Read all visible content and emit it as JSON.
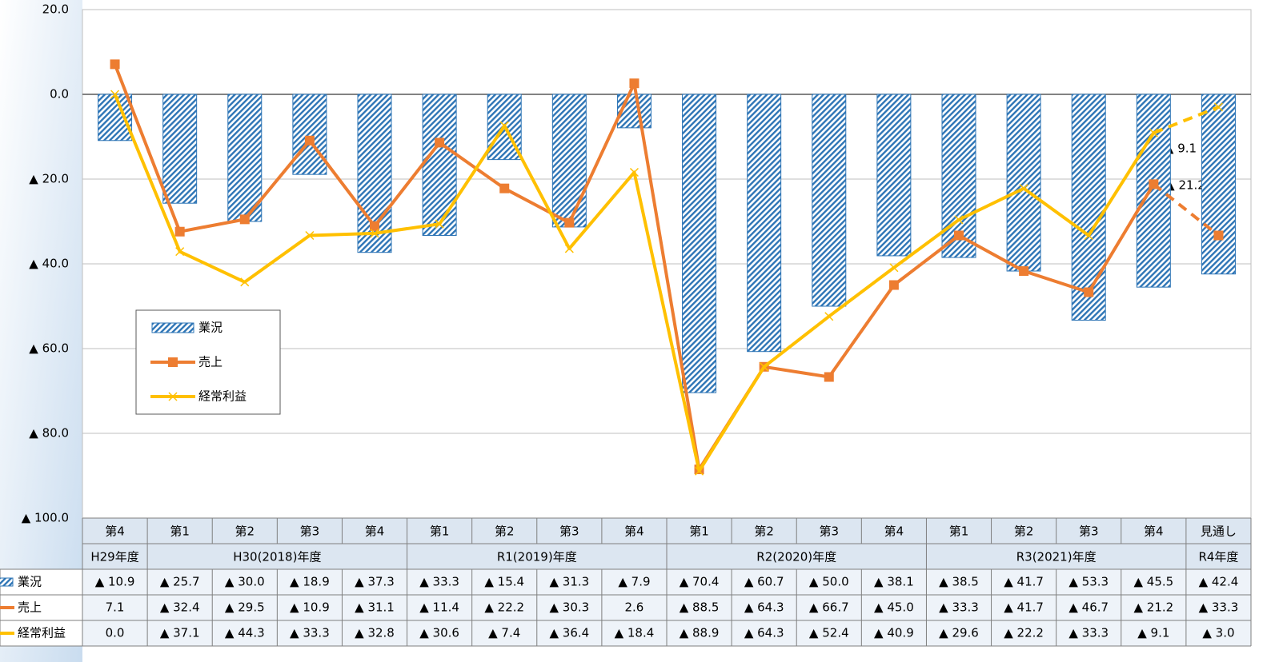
{
  "chart_data": {
    "type": "bar_line_table",
    "categories": [
      "第4",
      "第1",
      "第2",
      "第3",
      "第4",
      "第1",
      "第2",
      "第3",
      "第4",
      "第1",
      "第2",
      "第3",
      "第4",
      "第1",
      "第2",
      "第3",
      "第4",
      "見通し"
    ],
    "year_categories": [
      "H29年度",
      "H30(2018)年度",
      null,
      null,
      null,
      "R1(2019)年度",
      null,
      null,
      null,
      "R2(2020)年度",
      null,
      null,
      null,
      "R3(2021)年度",
      null,
      null,
      null,
      "R4年度"
    ],
    "ylim": [
      -100,
      20
    ],
    "yticks": [
      {
        "value": 20,
        "label": "20.0"
      },
      {
        "value": 0,
        "label": "0.0"
      },
      {
        "value": -20,
        "label": "▲ 20.0"
      },
      {
        "value": -40,
        "label": "▲ 40.0"
      },
      {
        "value": -60,
        "label": "▲ 60.0"
      },
      {
        "value": -80,
        "label": "▲ 80.0"
      },
      {
        "value": -100,
        "label": "▲ 100.0"
      }
    ],
    "grid": true,
    "forecast_dashed": true,
    "series": [
      {
        "name": "業況",
        "kind": "bar",
        "color": "#2e75b6",
        "values": [
          -10.9,
          -25.7,
          -30.0,
          -18.9,
          -37.3,
          -33.3,
          -15.4,
          -31.3,
          -7.9,
          -70.4,
          -60.7,
          -50.0,
          -38.1,
          -38.5,
          -41.7,
          -53.3,
          -45.5,
          -42.4
        ],
        "value_labels": [
          "▲ 10.9",
          "▲ 25.7",
          "▲ 30.0",
          "▲ 18.9",
          "▲ 37.3",
          "▲ 33.3",
          "▲ 15.4",
          "▲ 31.3",
          "▲ 7.9",
          "▲ 70.4",
          "▲ 60.7",
          "▲ 50.0",
          "▲ 38.1",
          "▲ 38.5",
          "▲ 41.7",
          "▲ 53.3",
          "▲ 45.5",
          "▲ 42.4"
        ]
      },
      {
        "name": "売上",
        "kind": "line",
        "marker": "square",
        "color": "#ed7d31",
        "values": [
          7.1,
          -32.4,
          -29.5,
          -10.9,
          -31.1,
          -11.4,
          -22.2,
          -30.3,
          2.6,
          -88.5,
          -64.3,
          -66.7,
          -45.0,
          -33.3,
          -41.7,
          -46.7,
          -21.2,
          -33.3
        ],
        "value_labels": [
          "7.1",
          "▲ 32.4",
          "▲ 29.5",
          "▲ 10.9",
          "▲ 31.1",
          "▲ 11.4",
          "▲ 22.2",
          "▲ 30.3",
          "2.6",
          "▲ 88.5",
          "▲ 64.3",
          "▲ 66.7",
          "▲ 45.0",
          "▲ 33.3",
          "▲ 41.7",
          "▲ 46.7",
          "▲ 21.2",
          "▲ 33.3"
        ]
      },
      {
        "name": "経常利益",
        "kind": "line",
        "marker": "x",
        "color": "#ffc000",
        "values": [
          0.0,
          -37.1,
          -44.3,
          -33.3,
          -32.8,
          -30.6,
          -7.4,
          -36.4,
          -18.4,
          -88.9,
          -64.3,
          -52.4,
          -40.9,
          -29.6,
          -22.2,
          -33.3,
          -9.1,
          -3.0
        ],
        "value_labels": [
          "0.0",
          "▲ 37.1",
          "▲ 44.3",
          "▲ 33.3",
          "▲ 32.8",
          "▲ 30.6",
          "▲ 7.4",
          "▲ 36.4",
          "▲ 18.4",
          "▲ 88.9",
          "▲ 64.3",
          "▲ 52.4",
          "▲ 40.9",
          "▲ 29.6",
          "▲ 22.2",
          "▲ 33.3",
          "▲ 9.1",
          "▲ 3.0"
        ]
      }
    ],
    "annotations": [
      "▲ 9.1",
      "▲ 21.2"
    ]
  }
}
